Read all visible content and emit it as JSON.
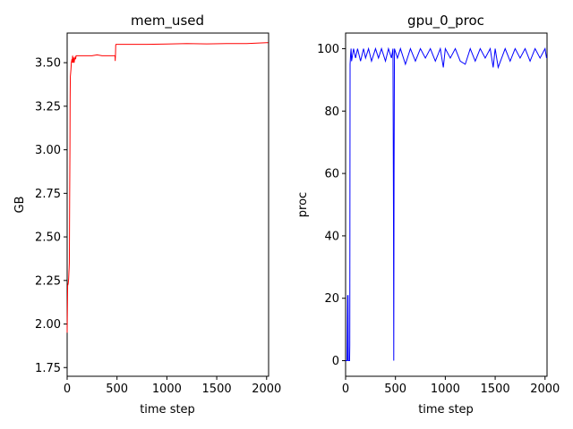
{
  "chart_data": [
    {
      "type": "line",
      "title": "mem_used",
      "xlabel": "time step",
      "ylabel": "GB",
      "xlim": [
        0,
        2020
      ],
      "ylim": [
        1.7,
        3.67
      ],
      "xticks": [
        0,
        500,
        1000,
        1500,
        2000
      ],
      "yticks": [
        1.75,
        2.0,
        2.25,
        2.5,
        2.75,
        3.0,
        3.25,
        3.5
      ],
      "ytick_labels": [
        "1.75",
        "2.00",
        "2.25",
        "2.50",
        "2.75",
        "3.00",
        "3.25",
        "3.50"
      ],
      "grid": false,
      "color": "#ff0000",
      "series": [
        {
          "x": [
            0,
            5,
            10,
            12,
            15,
            18,
            20,
            22,
            25,
            28,
            30,
            32,
            35,
            38,
            40,
            42,
            45,
            48,
            50,
            55,
            60,
            65,
            70,
            75,
            80,
            85,
            90,
            100,
            120,
            150,
            200,
            250,
            300,
            350,
            400,
            450,
            480,
            482,
            485,
            487,
            490,
            600,
            800,
            1000,
            1200,
            1400,
            1600,
            1800,
            2000,
            2015
          ],
          "y": [
            1.95,
            2.22,
            2.23,
            2.24,
            2.26,
            2.3,
            2.32,
            2.35,
            2.7,
            3.0,
            3.3,
            3.42,
            3.44,
            3.46,
            3.48,
            3.5,
            3.51,
            3.52,
            3.5,
            3.54,
            3.5,
            3.53,
            3.5,
            3.52,
            3.53,
            3.52,
            3.54,
            3.54,
            3.54,
            3.54,
            3.54,
            3.54,
            3.545,
            3.54,
            3.54,
            3.54,
            3.54,
            3.51,
            3.55,
            3.6,
            3.605,
            3.605,
            3.605,
            3.607,
            3.61,
            3.608,
            3.61,
            3.61,
            3.615,
            3.615
          ]
        }
      ]
    },
    {
      "type": "line",
      "title": "gpu_0_proc",
      "xlabel": "time step",
      "ylabel": "proc",
      "xlim": [
        0,
        2020
      ],
      "ylim": [
        -5,
        105
      ],
      "xticks": [
        0,
        500,
        1000,
        1500,
        2000
      ],
      "yticks": [
        0,
        20,
        40,
        60,
        80,
        100
      ],
      "ytick_labels": [
        "0",
        "20",
        "40",
        "60",
        "80",
        "100"
      ],
      "grid": false,
      "color": "#0000ff",
      "series": [
        {
          "x": [
            0,
            15,
            20,
            22,
            25,
            28,
            35,
            40,
            42,
            45,
            50,
            55,
            60,
            80,
            100,
            120,
            150,
            180,
            200,
            230,
            260,
            300,
            330,
            360,
            400,
            430,
            460,
            475,
            480,
            483,
            486,
            490,
            520,
            550,
            600,
            650,
            700,
            750,
            800,
            850,
            900,
            950,
            980,
            1000,
            1050,
            1100,
            1150,
            1200,
            1250,
            1300,
            1350,
            1400,
            1450,
            1480,
            1500,
            1530,
            1600,
            1650,
            1700,
            1750,
            1800,
            1850,
            1900,
            1950,
            2000,
            2015
          ],
          "y": [
            0,
            0,
            21,
            0,
            21,
            0,
            0,
            0,
            5,
            95,
            98,
            100,
            96,
            100,
            97,
            100,
            96,
            100,
            97,
            100,
            96,
            100,
            97,
            100,
            96,
            100,
            97,
            100,
            50,
            0,
            60,
            100,
            97,
            100,
            95,
            100,
            96,
            100,
            97,
            100,
            96,
            100,
            94,
            100,
            97,
            100,
            96,
            95,
            100,
            96,
            100,
            97,
            100,
            94,
            100,
            94,
            100,
            96,
            100,
            97,
            100,
            96,
            100,
            97,
            100,
            97
          ]
        }
      ]
    }
  ]
}
